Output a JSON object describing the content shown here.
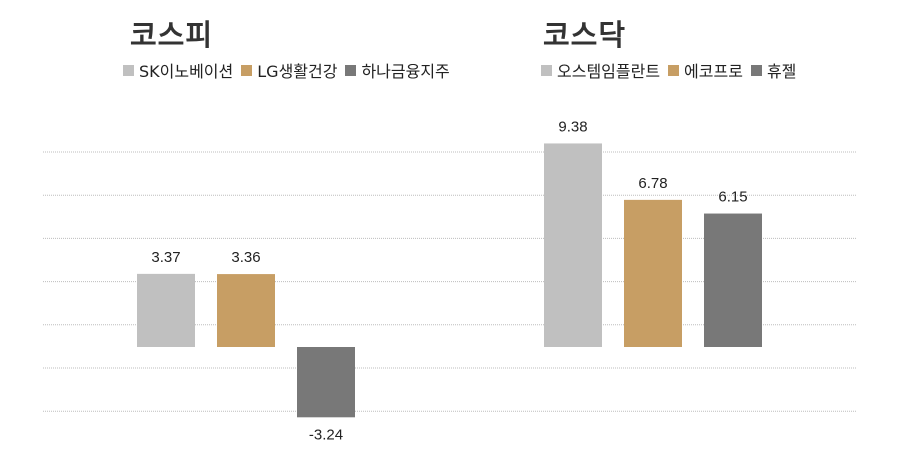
{
  "chart_data": [
    {
      "type": "bar",
      "title": "코스피",
      "categories": [
        "SK이노베이션",
        "LG생활건강",
        "하나금융지주"
      ],
      "values": [
        3.37,
        3.36,
        -3.24
      ],
      "value_labels": [
        "3.37",
        "3.36",
        "-3.24"
      ],
      "colors": [
        "#c0c0c0",
        "#c79e64",
        "#787878"
      ],
      "legend": "top",
      "grid": true,
      "xlabel": "",
      "ylabel": ""
    },
    {
      "type": "bar",
      "title": "코스닥",
      "categories": [
        "오스템임플란트",
        "에코프로",
        "휴젤"
      ],
      "values": [
        9.38,
        6.78,
        6.15
      ],
      "value_labels": [
        "9.38",
        "6.78",
        "6.15"
      ],
      "colors": [
        "#c0c0c0",
        "#c79e64",
        "#787878"
      ],
      "legend": "top",
      "grid": true,
      "xlabel": "",
      "ylabel": ""
    }
  ]
}
